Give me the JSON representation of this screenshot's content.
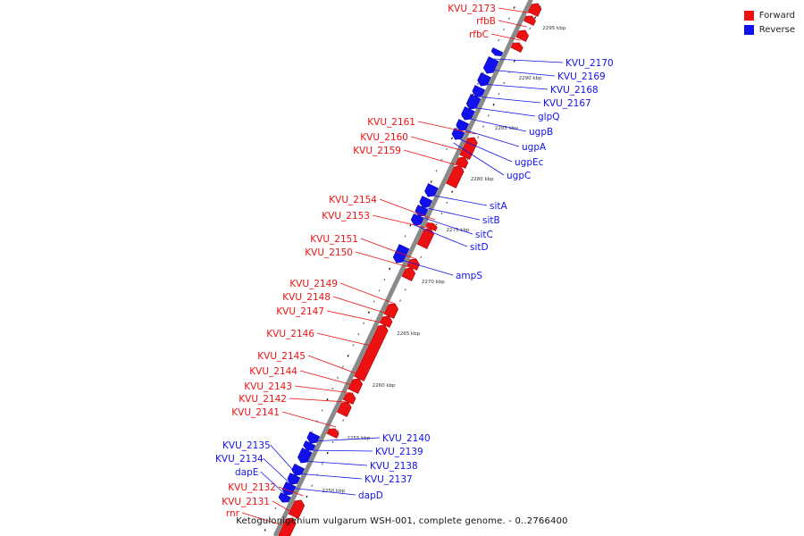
{
  "colors": {
    "forward": "#ee1111",
    "reverse": "#1111ee",
    "backbone": "#8a8a8a"
  },
  "legend": [
    {
      "label": "Forward",
      "color": "#ee1111"
    },
    {
      "label": "Reverse",
      "color": "#1111ee"
    }
  ],
  "caption": "Ketogulonigenium vulgarum WSH-001, complete genome. - 0..2766400",
  "scale_labels": [
    "2295 kbp",
    "2290 kbp",
    "2285 kbp",
    "2280 kbp",
    "2275 kbp",
    "2270 kbp",
    "2265 kbp",
    "2260 kbp",
    "2255 kbp",
    "2250 kbp"
  ],
  "forward_genes": [
    "KVU_2173",
    "rfbB",
    "rfbC",
    "KVU_2161",
    "KVU_2160",
    "KVU_2159",
    "KVU_2154",
    "KVU_2153",
    "KVU_2151",
    "KVU_2150",
    "KVU_2149",
    "KVU_2148",
    "KVU_2147",
    "KVU_2146",
    "KVU_2145",
    "KVU_2144",
    "KVU_2143",
    "KVU_2142",
    "KVU_2141",
    "KVU_2132",
    "KVU_2131",
    "rnr"
  ],
  "reverse_genes": [
    "KVU_2170",
    "KVU_2169",
    "KVU_2168",
    "KVU_2167",
    "glpQ",
    "ugpB",
    "ugpA",
    "ugpEc",
    "ugpC",
    "sitA",
    "sitB",
    "sitC",
    "sitD",
    "ampS",
    "KVU_2140",
    "KVU_2139",
    "KVU_2138",
    "KVU_2137",
    "dapD",
    "KVU_2135",
    "KVU_2134",
    "dapE"
  ]
}
